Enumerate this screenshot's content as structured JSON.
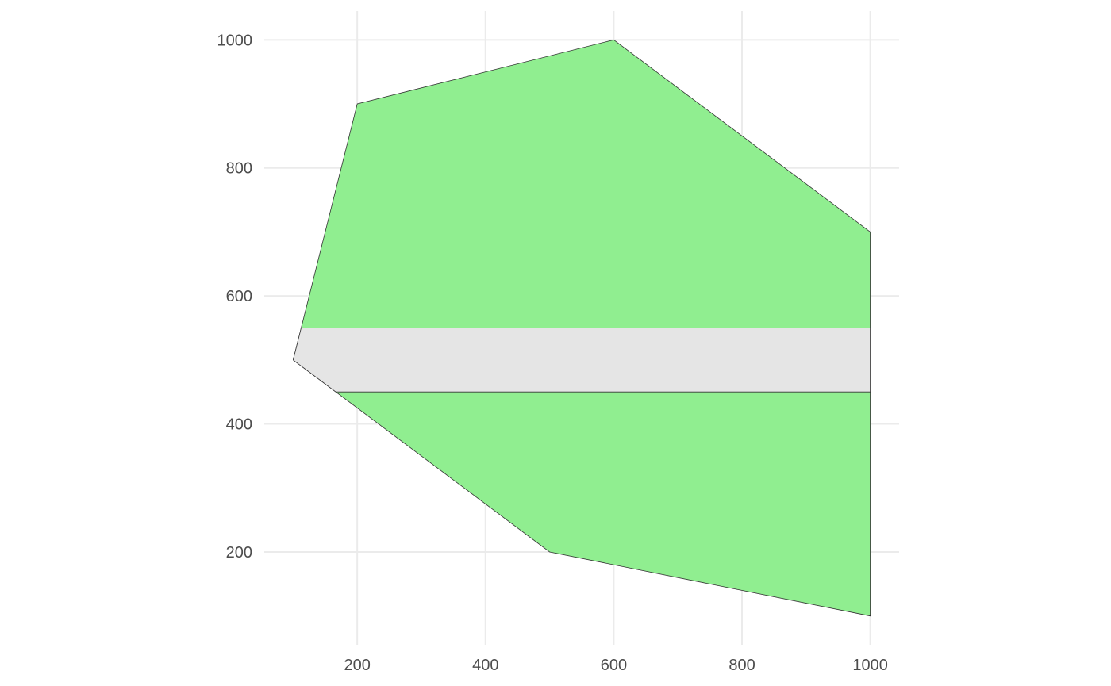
{
  "chart_data": {
    "type": "area",
    "title": "",
    "xlabel": "",
    "ylabel": "",
    "xlim": [
      55,
      1045
    ],
    "ylim": [
      55,
      1045
    ],
    "x_ticks": [
      200,
      400,
      600,
      800,
      1000
    ],
    "y_ticks": [
      200,
      400,
      600,
      800,
      1000
    ],
    "x_tick_labels": [
      "200",
      "400",
      "600",
      "800",
      "1000"
    ],
    "y_tick_labels": [
      "200",
      "400",
      "600",
      "800",
      "1000"
    ],
    "grid": true,
    "legend": "none",
    "polygons": [
      {
        "fill": "#90EE90",
        "points": [
          [
            100,
            500
          ],
          [
            200,
            900
          ],
          [
            600,
            1000
          ],
          [
            1000,
            700
          ],
          [
            1000,
            100
          ],
          [
            500,
            200
          ]
        ]
      },
      {
        "fill": "#e5e5e5",
        "points": [
          [
            112.5,
            550
          ],
          [
            1000,
            550
          ],
          [
            1000,
            450
          ],
          [
            166.67,
            450
          ],
          [
            100,
            500
          ]
        ]
      }
    ]
  }
}
